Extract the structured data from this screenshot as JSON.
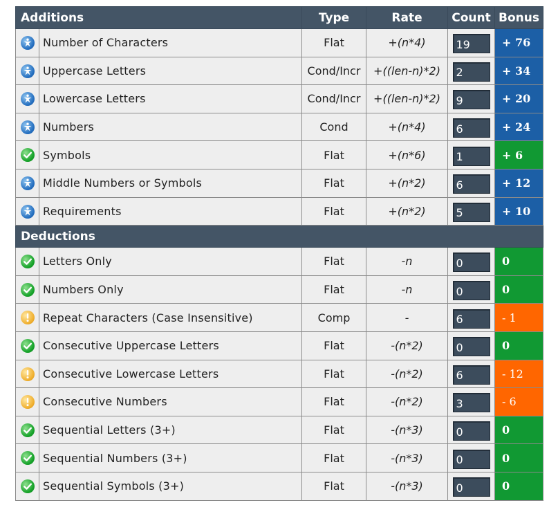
{
  "additions": {
    "title": "Additions",
    "columns": {
      "type": "Type",
      "rate": "Rate",
      "count": "Count",
      "bonus": "Bonus"
    },
    "rows": [
      {
        "label": "Number of Characters",
        "type": "Flat",
        "rate": "+(n*4)",
        "count": "19",
        "bonus": "+ 76",
        "status": "exceed",
        "color": "blue"
      },
      {
        "label": "Uppercase Letters",
        "type": "Cond/Incr",
        "rate": "+((len-n)*2)",
        "count": "2",
        "bonus": "+ 34",
        "status": "exceed",
        "color": "blue"
      },
      {
        "label": "Lowercase Letters",
        "type": "Cond/Incr",
        "rate": "+((len-n)*2)",
        "count": "9",
        "bonus": "+ 20",
        "status": "exceed",
        "color": "blue"
      },
      {
        "label": "Numbers",
        "type": "Cond",
        "rate": "+(n*4)",
        "count": "6",
        "bonus": "+ 24",
        "status": "exceed",
        "color": "blue"
      },
      {
        "label": "Symbols",
        "type": "Flat",
        "rate": "+(n*6)",
        "count": "1",
        "bonus": "+ 6",
        "status": "pass",
        "color": "green"
      },
      {
        "label": "Middle Numbers or Symbols",
        "type": "Flat",
        "rate": "+(n*2)",
        "count": "6",
        "bonus": "+ 12",
        "status": "exceed",
        "color": "blue"
      },
      {
        "label": "Requirements",
        "type": "Flat",
        "rate": "+(n*2)",
        "count": "5",
        "bonus": "+ 10",
        "status": "exceed",
        "color": "blue"
      }
    ]
  },
  "deductions": {
    "title": "Deductions",
    "rows": [
      {
        "label": "Letters Only",
        "type": "Flat",
        "rate": "-n",
        "count": "0",
        "bonus": "0",
        "status": "pass",
        "color": "green"
      },
      {
        "label": "Numbers Only",
        "type": "Flat",
        "rate": "-n",
        "count": "0",
        "bonus": "0",
        "status": "pass",
        "color": "green"
      },
      {
        "label": "Repeat Characters (Case Insensitive)",
        "type": "Comp",
        "rate": "-",
        "count": "6",
        "bonus": "- 1",
        "status": "warn",
        "color": "orange"
      },
      {
        "label": "Consecutive Uppercase Letters",
        "type": "Flat",
        "rate": "-(n*2)",
        "count": "0",
        "bonus": "0",
        "status": "pass",
        "color": "green"
      },
      {
        "label": "Consecutive Lowercase Letters",
        "type": "Flat",
        "rate": "-(n*2)",
        "count": "6",
        "bonus": "- 12",
        "status": "warn",
        "color": "orange"
      },
      {
        "label": "Consecutive Numbers",
        "type": "Flat",
        "rate": "-(n*2)",
        "count": "3",
        "bonus": "- 6",
        "status": "warn",
        "color": "orange"
      },
      {
        "label": "Sequential Letters (3+)",
        "type": "Flat",
        "rate": "-(n*3)",
        "count": "0",
        "bonus": "0",
        "status": "pass",
        "color": "green"
      },
      {
        "label": "Sequential Numbers (3+)",
        "type": "Flat",
        "rate": "-(n*3)",
        "count": "0",
        "bonus": "0",
        "status": "pass",
        "color": "green"
      },
      {
        "label": "Sequential Symbols (3+)",
        "type": "Flat",
        "rate": "-(n*3)",
        "count": "0",
        "bonus": "0",
        "status": "pass",
        "color": "green"
      }
    ]
  },
  "icons": {
    "exceed": "exceed-icon",
    "pass": "pass-icon",
    "warn": "warning-icon"
  },
  "colors": {
    "header": "#445566",
    "blue": "#1c5fa6",
    "green": "#119933",
    "orange": "#ff6600",
    "row": "#eeeeee",
    "input": "#3c4c5c"
  }
}
